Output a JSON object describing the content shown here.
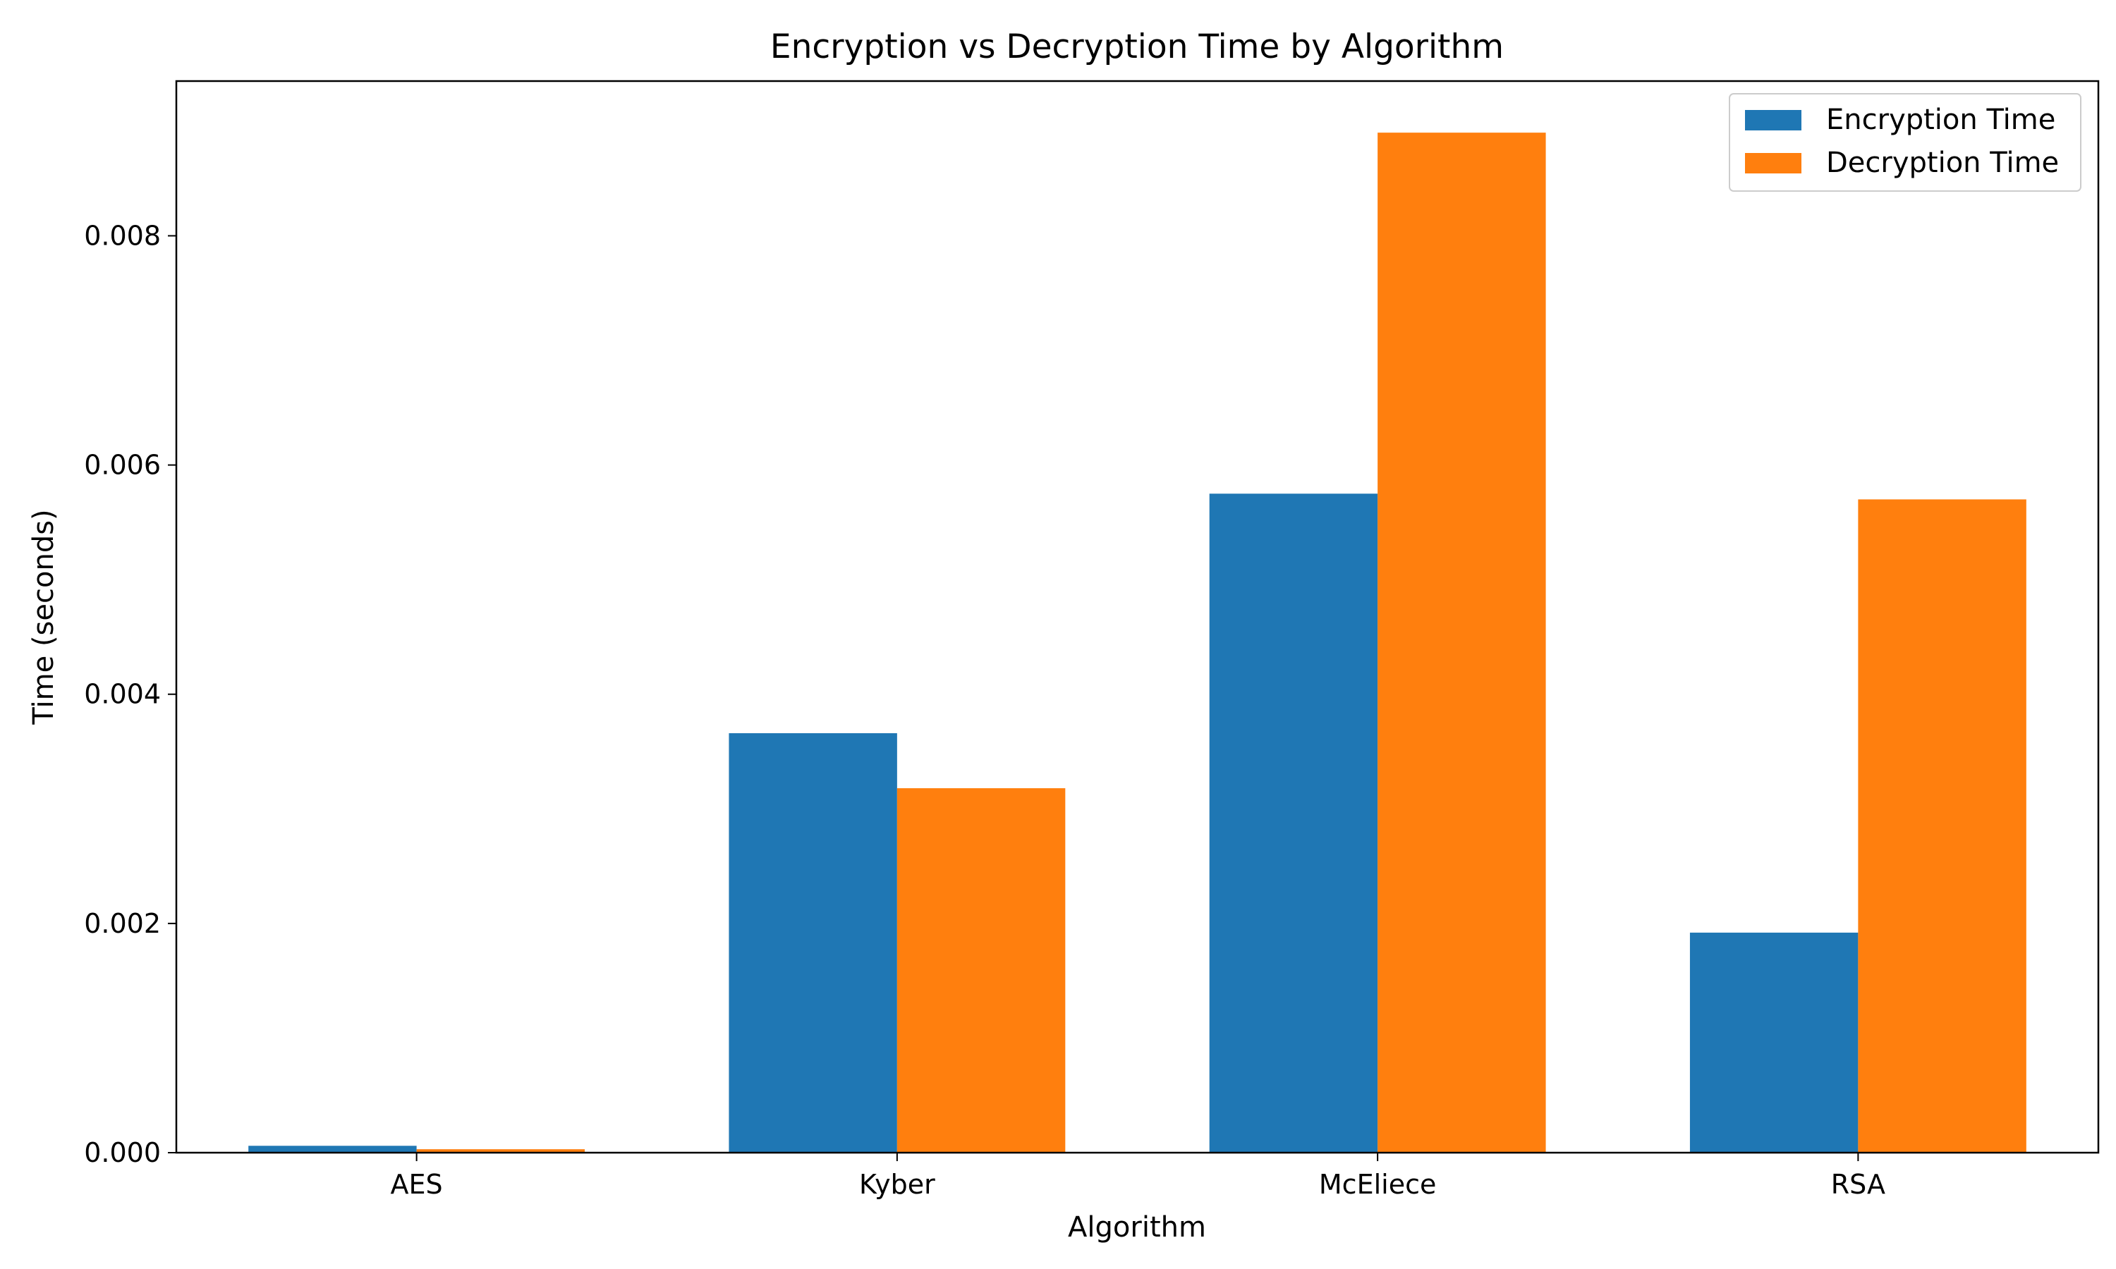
{
  "chart_data": {
    "type": "bar",
    "title": "Encryption vs Decryption Time by Algorithm",
    "xlabel": "Algorithm",
    "ylabel": "Time (seconds)",
    "categories": [
      "AES",
      "Kyber",
      "McEliece",
      "RSA"
    ],
    "series": [
      {
        "name": "Encryption Time",
        "color": "#1f77b4",
        "values": [
          6e-05,
          0.00366,
          0.00575,
          0.00192
        ]
      },
      {
        "name": "Decryption Time",
        "color": "#ff7f0e",
        "values": [
          3e-05,
          0.00318,
          0.0089,
          0.0057
        ]
      }
    ],
    "ylim": [
      0,
      0.00935
    ],
    "yticks": [
      0,
      0.002,
      0.004,
      0.006,
      0.008
    ],
    "ytick_labels": [
      "0.000",
      "0.002",
      "0.004",
      "0.006",
      "0.008"
    ],
    "grid": false,
    "legend_position": "top-right"
  }
}
